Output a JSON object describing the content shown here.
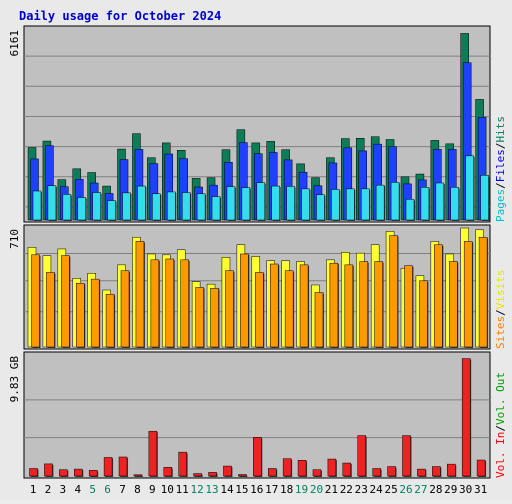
{
  "chart_data": [
    {
      "type": "bar",
      "title": "Daily usage for October 2024",
      "y_max_label": "6161",
      "ylim": [
        0,
        6161
      ],
      "categories": [
        "1",
        "2",
        "3",
        "4",
        "5",
        "6",
        "7",
        "8",
        "9",
        "10",
        "11",
        "12",
        "13",
        "14",
        "15",
        "16",
        "17",
        "18",
        "19",
        "20",
        "21",
        "22",
        "23",
        "24",
        "25",
        "26",
        "27",
        "28",
        "29",
        "30",
        "31"
      ],
      "series": [
        {
          "name": "Hits",
          "color": "#0d7c58",
          "values": [
            2350,
            2560,
            1310,
            1660,
            1540,
            1100,
            2300,
            2800,
            2020,
            2500,
            2260,
            1350,
            1370,
            2280,
            2930,
            2500,
            2550,
            2280,
            1820,
            1370,
            2020,
            2640,
            2650,
            2700,
            2610,
            1400,
            1490,
            2580,
            2470,
            6050,
            3910
          ]
        },
        {
          "name": "Files",
          "color": "#1e40ff",
          "values": [
            1980,
            2410,
            1080,
            1320,
            1200,
            860,
            1960,
            2290,
            1830,
            2140,
            1990,
            1070,
            1130,
            1870,
            2510,
            2150,
            2190,
            1950,
            1550,
            1110,
            1850,
            2340,
            2240,
            2460,
            2380,
            1170,
            1300,
            2290,
            2290,
            5100,
            3330
          ]
        },
        {
          "name": "Pages",
          "color": "#33ddee",
          "values": [
            940,
            1110,
            830,
            730,
            890,
            630,
            880,
            1100,
            850,
            910,
            890,
            850,
            760,
            1080,
            1050,
            1210,
            1100,
            1090,
            1010,
            820,
            990,
            1010,
            1010,
            1130,
            1220,
            670,
            1060,
            1200,
            1060,
            2080,
            1450
          ]
        }
      ]
    },
    {
      "type": "bar",
      "y_max_label": "710",
      "ylim": [
        0,
        710
      ],
      "categories": [
        "1",
        "2",
        "3",
        "4",
        "5",
        "6",
        "7",
        "8",
        "9",
        "10",
        "11",
        "12",
        "13",
        "14",
        "15",
        "16",
        "17",
        "18",
        "19",
        "20",
        "21",
        "22",
        "23",
        "24",
        "25",
        "26",
        "27",
        "28",
        "29",
        "30",
        "31"
      ],
      "series": [
        {
          "name": "Visits",
          "color": "#ffff33",
          "values": [
            595,
            545,
            585,
            410,
            440,
            340,
            490,
            655,
            555,
            550,
            580,
            390,
            375,
            535,
            610,
            540,
            515,
            515,
            510,
            370,
            520,
            565,
            560,
            610,
            690,
            470,
            425,
            630,
            555,
            710,
            700
          ]
        },
        {
          "name": "Sites",
          "color": "#ff9900",
          "values": [
            550,
            445,
            545,
            380,
            405,
            315,
            455,
            630,
            520,
            525,
            520,
            355,
            350,
            455,
            555,
            445,
            495,
            455,
            490,
            325,
            500,
            490,
            510,
            510,
            665,
            485,
            395,
            610,
            510,
            630,
            655
          ]
        }
      ]
    },
    {
      "type": "bar",
      "y_max_label": "9.83 GB",
      "ylim": [
        0,
        9.83
      ],
      "categories": [
        "1",
        "2",
        "3",
        "4",
        "5",
        "6",
        "7",
        "8",
        "9",
        "10",
        "11",
        "12",
        "13",
        "14",
        "15",
        "16",
        "17",
        "18",
        "19",
        "20",
        "21",
        "22",
        "23",
        "24",
        "25",
        "26",
        "27",
        "28",
        "29",
        "30",
        "31"
      ],
      "series": [
        {
          "name": "Vol. In",
          "color": "#ee2222",
          "values": [
            0.62,
            1.0,
            0.52,
            0.57,
            0.47,
            1.53,
            1.57,
            0.1,
            3.7,
            0.72,
            1.97,
            0.2,
            0.3,
            0.82,
            0.12,
            3.2,
            0.62,
            1.43,
            1.3,
            0.52,
            1.4,
            1.07,
            3.34,
            0.62,
            0.78,
            3.34,
            0.57,
            0.78,
            0.98,
            9.7,
            1.32
          ]
        }
      ]
    }
  ],
  "legend": {
    "hits": "Hits",
    "files": "Files",
    "pages": "Pages",
    "visits": "Visits",
    "sites": "Sites",
    "vol_out": "Vol. Out",
    "vol_in": "Vol. In",
    "sep": "/",
    "colors": {
      "hits": "#007f5f",
      "files": "#0000ff",
      "pages": "#00c0d0",
      "visits": "#ffff00",
      "sites": "#ff8000",
      "vol_out": "#00a000",
      "vol_in": "#ff0000"
    }
  },
  "weekend_days": [
    "5",
    "6",
    "12",
    "13",
    "19",
    "20",
    "26",
    "27"
  ],
  "colors": {
    "panel": "#c0c0c0",
    "weekday_label": "#000000",
    "weekend_label": "#008060",
    "title": "#0000cc"
  }
}
